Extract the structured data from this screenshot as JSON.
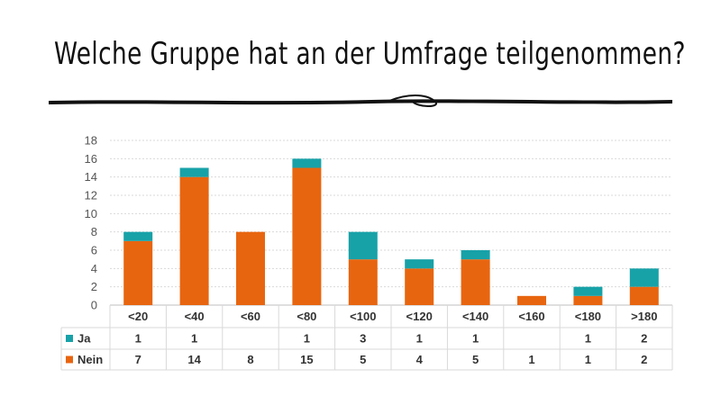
{
  "slide": {
    "title": "Welche Gruppe hat an der Umfrage teilgenommen?"
  },
  "chart_data": {
    "type": "bar",
    "stacked": true,
    "categories": [
      "<20",
      "<40",
      "<60",
      "<80",
      "<100",
      "<120",
      "<140",
      "<160",
      "<180",
      ">180"
    ],
    "series": [
      {
        "name": "Ja",
        "color": "#17A2A8",
        "values": [
          1,
          1,
          null,
          1,
          3,
          1,
          1,
          null,
          1,
          2
        ]
      },
      {
        "name": "Nein",
        "color": "#E8650F",
        "values": [
          7,
          14,
          8,
          15,
          5,
          4,
          5,
          1,
          1,
          2
        ]
      }
    ],
    "ylim": [
      0,
      18
    ],
    "yticks": [
      0,
      2,
      4,
      6,
      8,
      10,
      12,
      14,
      16,
      18
    ],
    "grid": true,
    "data_table": true
  }
}
